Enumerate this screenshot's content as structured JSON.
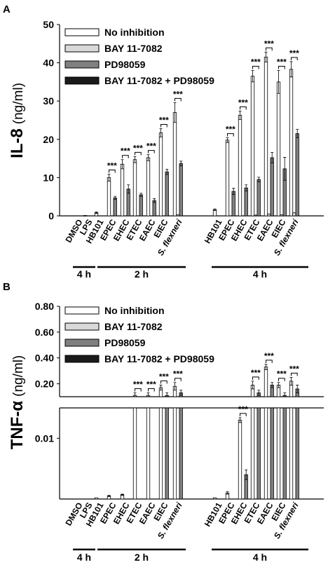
{
  "figure": {
    "panel_a_label": "A",
    "panel_b_label": "B"
  },
  "chart_data": [
    {
      "type": "bar",
      "panel": "A",
      "ylabel_bold": "IL-8",
      "ylabel_unit": "(ng/ml)",
      "ylim": [
        0,
        50
      ],
      "yticks": [
        "0",
        "10",
        "20",
        "30",
        "40",
        "50"
      ],
      "grid": false,
      "legend_position": "top-left",
      "series_names": [
        "No inhibition",
        "BAY 11-7082",
        "PD98059",
        "BAY 11-7082 + PD98059"
      ],
      "series_colors": [
        "#ffffff",
        "#d9d9d9",
        "#808080",
        "#1a1a1a"
      ],
      "groups": [
        {
          "label": "DMSO",
          "time": "4 h",
          "values": [
            0,
            0,
            0,
            0
          ],
          "err": [
            0,
            0,
            0,
            0
          ],
          "sig": false
        },
        {
          "label": "LPS",
          "time": "4 h",
          "values": [
            0.1,
            0,
            0,
            0
          ],
          "err": [
            0,
            0,
            0,
            0
          ],
          "sig": false
        },
        {
          "label": "HB101",
          "time": "2 h",
          "values": [
            0.8,
            0,
            0,
            0
          ],
          "err": [
            0.2,
            0,
            0,
            0
          ],
          "sig": false
        },
        {
          "label": "EPEC",
          "time": "2 h",
          "values": [
            10,
            0,
            4.7,
            0
          ],
          "err": [
            0.9,
            0,
            0.4,
            0
          ],
          "sig": true
        },
        {
          "label": "EHEC",
          "time": "2 h",
          "values": [
            13.5,
            0,
            7,
            0
          ],
          "err": [
            1.2,
            0,
            1.1,
            0
          ],
          "sig": true
        },
        {
          "label": "ETEC",
          "time": "2 h",
          "values": [
            14.7,
            0,
            5.5,
            0
          ],
          "err": [
            0.8,
            0,
            0.4,
            0
          ],
          "sig": true
        },
        {
          "label": "EAEC",
          "time": "2 h",
          "values": [
            15.2,
            0,
            4,
            0
          ],
          "err": [
            0.8,
            0,
            0.5,
            0
          ],
          "sig": true
        },
        {
          "label": "EIEC",
          "time": "2 h",
          "values": [
            21.7,
            0,
            11.5,
            0
          ],
          "err": [
            1.1,
            0,
            0.7,
            0
          ],
          "sig": true
        },
        {
          "label": "S. flexneri",
          "time": "2 h",
          "values": [
            27,
            0.3,
            13.7,
            0
          ],
          "err": [
            2.6,
            0,
            0.6,
            0
          ],
          "sig": true
        },
        {
          "label": "HB101",
          "time": "4 h",
          "values": [
            1.6,
            0,
            0,
            0
          ],
          "err": [
            0.2,
            0,
            0,
            0
          ],
          "sig": false
        },
        {
          "label": "EPEC",
          "time": "4 h",
          "values": [
            19.8,
            0,
            6.4,
            0
          ],
          "err": [
            0.6,
            0,
            0.8,
            0
          ],
          "sig": true
        },
        {
          "label": "EHEC",
          "time": "4 h",
          "values": [
            26.3,
            0,
            7.3,
            0
          ],
          "err": [
            1.1,
            0,
            0.8,
            0
          ],
          "sig": true
        },
        {
          "label": "ETEC",
          "time": "4 h",
          "values": [
            36.5,
            0.2,
            9.5,
            0
          ],
          "err": [
            1.5,
            0,
            0.6,
            0
          ],
          "sig": true
        },
        {
          "label": "EAEC",
          "time": "4 h",
          "values": [
            41.5,
            0.5,
            15.2,
            0
          ],
          "err": [
            1.3,
            0,
            1.4,
            0
          ],
          "sig": true
        },
        {
          "label": "EIEC",
          "time": "4 h",
          "values": [
            35,
            0.3,
            12.3,
            0
          ],
          "err": [
            3,
            0,
            3,
            0
          ],
          "sig": true
        },
        {
          "label": "S. flexneri",
          "time": "4 h",
          "values": [
            38.3,
            0.8,
            21.5,
            0
          ],
          "err": [
            2,
            0,
            1.1,
            0
          ],
          "sig": true
        }
      ],
      "sig_label": "***",
      "time_groups": [
        {
          "label": "4 h",
          "members": [
            "DMSO",
            "LPS"
          ]
        },
        {
          "label": "2 h",
          "members": [
            "HB101",
            "EPEC",
            "EHEC",
            "ETEC",
            "EAEC",
            "EIEC",
            "S. flexneri"
          ]
        },
        {
          "label": "4 h",
          "members": [
            "HB101",
            "EPEC",
            "EHEC",
            "ETEC",
            "EAEC",
            "EIEC",
            "S. flexneri"
          ]
        }
      ]
    },
    {
      "type": "bar",
      "panel": "B",
      "ylabel_bold": "TNF-α",
      "ylabel_unit": "(ng/ml)",
      "axis_break": true,
      "upper_ylim": [
        0.1,
        0.8
      ],
      "upper_yticks": [
        "0.20",
        "0.40",
        "0.60",
        "0.80"
      ],
      "lower_ylim": [
        0,
        0.015
      ],
      "lower_yticks": [
        "0.01"
      ],
      "grid": false,
      "legend_position": "top-left",
      "series_names": [
        "No inhibition",
        "BAY 11-7082",
        "PD98059",
        "BAY 11-7082 + PD98059"
      ],
      "series_colors": [
        "#ffffff",
        "#d9d9d9",
        "#808080",
        "#1a1a1a"
      ],
      "groups": [
        {
          "label": "DMSO",
          "time": "4 h",
          "values": [
            0,
            0,
            0,
            0
          ],
          "err": [
            0,
            0,
            0,
            0
          ],
          "sig": false
        },
        {
          "label": "LPS",
          "time": "4 h",
          "values": [
            0,
            0,
            0,
            0
          ],
          "err": [
            0,
            0,
            0,
            0
          ],
          "sig": false
        },
        {
          "label": "HB101",
          "time": "2 h",
          "values": [
            0.0002,
            0,
            0,
            0
          ],
          "err": [
            0,
            0,
            0,
            0
          ],
          "sig": false
        },
        {
          "label": "EPEC",
          "time": "2 h",
          "values": [
            0.0005,
            0,
            0,
            0
          ],
          "err": [
            0.0001,
            0,
            0,
            0
          ],
          "sig": false
        },
        {
          "label": "EHEC",
          "time": "2 h",
          "values": [
            0.0007,
            0,
            0,
            0
          ],
          "err": [
            0.0001,
            0,
            0,
            0
          ],
          "sig": false
        },
        {
          "label": "ETEC",
          "time": "2 h",
          "values": [
            0.11,
            0,
            0,
            0
          ],
          "err": [
            0.02,
            0,
            0,
            0
          ],
          "sig": true
        },
        {
          "label": "EAEC",
          "time": "2 h",
          "values": [
            0.11,
            0,
            0,
            0
          ],
          "err": [
            0.02,
            0,
            0,
            0
          ],
          "sig": true
        },
        {
          "label": "EIEC",
          "time": "2 h",
          "values": [
            0.17,
            0,
            0.11,
            0
          ],
          "err": [
            0.02,
            0,
            0.02,
            0
          ],
          "sig": true
        },
        {
          "label": "S. flexneri",
          "time": "2 h",
          "values": [
            0.18,
            0,
            0.13,
            0
          ],
          "err": [
            0.03,
            0,
            0.02,
            0
          ],
          "sig": true
        },
        {
          "label": "HB101",
          "time": "4 h",
          "values": [
            0.0002,
            0,
            0,
            0
          ],
          "err": [
            0,
            0,
            0,
            0
          ],
          "sig": false
        },
        {
          "label": "EPEC",
          "time": "4 h",
          "values": [
            0.001,
            0,
            0,
            0
          ],
          "err": [
            0.0002,
            0,
            0,
            0
          ],
          "sig": false
        },
        {
          "label": "EHEC",
          "time": "4 h",
          "values": [
            0.013,
            0,
            0.004,
            0
          ],
          "err": [
            0.0004,
            0,
            0.0008,
            0
          ],
          "sig": true
        },
        {
          "label": "ETEC",
          "time": "4 h",
          "values": [
            0.19,
            0,
            0.13,
            0
          ],
          "err": [
            0.03,
            0,
            0.02,
            0
          ],
          "sig": true
        },
        {
          "label": "EAEC",
          "time": "4 h",
          "values": [
            0.33,
            0,
            0.19,
            0
          ],
          "err": [
            0.02,
            0,
            0.02,
            0
          ],
          "sig": true
        },
        {
          "label": "EIEC",
          "time": "4 h",
          "values": [
            0.19,
            0,
            0.11,
            0
          ],
          "err": [
            0.02,
            0,
            0.02,
            0
          ],
          "sig": true
        },
        {
          "label": "S. flexneri",
          "time": "4 h",
          "values": [
            0.22,
            0,
            0.16,
            0
          ],
          "err": [
            0.03,
            0,
            0.03,
            0
          ],
          "sig": true
        }
      ],
      "sig_label": "***",
      "time_groups": [
        {
          "label": "4 h",
          "members": [
            "DMSO",
            "LPS"
          ]
        },
        {
          "label": "2 h",
          "members": [
            "HB101",
            "EPEC",
            "EHEC",
            "ETEC",
            "EAEC",
            "EIEC",
            "S. flexneri"
          ]
        },
        {
          "label": "4 h",
          "members": [
            "HB101",
            "EPEC",
            "EHEC",
            "ETEC",
            "EAEC",
            "EIEC",
            "S. flexneri"
          ]
        }
      ]
    }
  ]
}
